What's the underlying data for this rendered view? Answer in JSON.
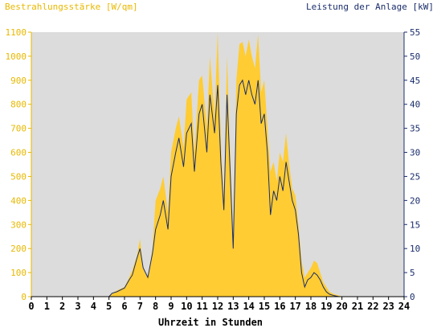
{
  "chart_data": {
    "type": "area",
    "title": "",
    "xlabel": "Uhrzeit in Stunden",
    "ylabel_left": "Bestrahlungsstärke [W/qm]",
    "ylabel_right": "Leistung der Anlage [kW]",
    "xlim": [
      0,
      24
    ],
    "ylim_left": [
      0,
      1100
    ],
    "ylim_right": [
      0,
      55
    ],
    "x_ticks": [
      "0",
      "1",
      "2",
      "3",
      "4",
      "5",
      "6",
      "7",
      "8",
      "9",
      "10",
      "11",
      "12",
      "13",
      "14",
      "15",
      "16",
      "17",
      "18",
      "19",
      "20",
      "21",
      "22",
      "23",
      "24"
    ],
    "y_ticks_left": [
      "0",
      "100",
      "200",
      "300",
      "400",
      "500",
      "600",
      "700",
      "800",
      "900",
      "1000",
      "1100"
    ],
    "y_ticks_right": [
      "0",
      "5",
      "10",
      "15",
      "20",
      "25",
      "30",
      "35",
      "40",
      "45",
      "50",
      "55"
    ],
    "grid": false,
    "colors": {
      "irradiance": "#ffcc33",
      "power": "#1a2d6b",
      "plot_bg": "#dcdcdc",
      "left_axis_text": "#e8b800",
      "right_axis_text": "#1a2d6b"
    },
    "series": [
      {
        "axis": "left",
        "style": "area",
        "x": [
          0,
          5,
          5.2,
          5.5,
          6,
          6.3,
          6.5,
          6.8,
          7,
          7.2,
          7.5,
          7.8,
          8,
          8.3,
          8.5,
          8.8,
          9,
          9.3,
          9.5,
          9.8,
          10,
          10.3,
          10.5,
          10.8,
          11,
          11.3,
          11.5,
          11.8,
          12,
          12.2,
          12.4,
          12.6,
          12.8,
          13,
          13.2,
          13.4,
          13.6,
          13.8,
          14,
          14.2,
          14.4,
          14.6,
          14.8,
          15,
          15.2,
          15.4,
          15.6,
          15.8,
          16,
          16.2,
          16.4,
          16.6,
          16.8,
          17,
          17.2,
          17.4,
          17.6,
          17.8,
          18,
          18.2,
          18.4,
          18.6,
          18.8,
          19,
          19.2,
          19.5,
          19.8,
          20,
          20.3,
          20.5,
          20.7,
          21,
          24
        ],
        "values": [
          0,
          0,
          15,
          25,
          40,
          80,
          110,
          170,
          240,
          120,
          80,
          200,
          400,
          450,
          500,
          350,
          600,
          700,
          750,
          620,
          820,
          850,
          600,
          900,
          920,
          700,
          1000,
          750,
          1100,
          650,
          400,
          1000,
          600,
          250,
          900,
          1050,
          1060,
          1000,
          1070,
          1000,
          950,
          1090,
          850,
          900,
          700,
          520,
          560,
          480,
          600,
          560,
          680,
          550,
          450,
          420,
          300,
          150,
          80,
          100,
          120,
          150,
          140,
          100,
          60,
          40,
          20,
          10,
          5,
          0,
          0,
          0,
          0,
          0,
          0
        ]
      },
      {
        "axis": "right",
        "style": "line",
        "x": [
          0,
          5,
          5.2,
          5.5,
          6,
          6.3,
          6.5,
          6.8,
          7,
          7.2,
          7.5,
          7.8,
          8,
          8.3,
          8.5,
          8.8,
          9,
          9.3,
          9.5,
          9.8,
          10,
          10.3,
          10.5,
          10.8,
          11,
          11.3,
          11.5,
          11.8,
          12,
          12.2,
          12.4,
          12.6,
          12.8,
          13,
          13.2,
          13.4,
          13.6,
          13.8,
          14,
          14.2,
          14.4,
          14.6,
          14.8,
          15,
          15.2,
          15.4,
          15.6,
          15.8,
          16,
          16.2,
          16.4,
          16.6,
          16.8,
          17,
          17.2,
          17.4,
          17.6,
          17.8,
          18,
          18.2,
          18.4,
          18.6,
          18.8,
          19,
          19.2,
          19.5,
          19.8,
          20,
          20.3,
          20.5,
          20.7,
          21,
          24
        ],
        "values": [
          0,
          0,
          0.7,
          1,
          1.8,
          3.5,
          4.5,
          8,
          10,
          6,
          4,
          9,
          14,
          17,
          20,
          14,
          25,
          30,
          33,
          27,
          34,
          36,
          26,
          38,
          40,
          30,
          42,
          34,
          44,
          28,
          18,
          42,
          26,
          10,
          38,
          44,
          45,
          42,
          45,
          42,
          40,
          45,
          36,
          38,
          30,
          17,
          22,
          20,
          25,
          22,
          28,
          24,
          20,
          18,
          13,
          5,
          2,
          3.5,
          4,
          5,
          4.5,
          3.5,
          2,
          1,
          0.5,
          0.2,
          0,
          0,
          0,
          0,
          0,
          0,
          0
        ]
      }
    ]
  }
}
